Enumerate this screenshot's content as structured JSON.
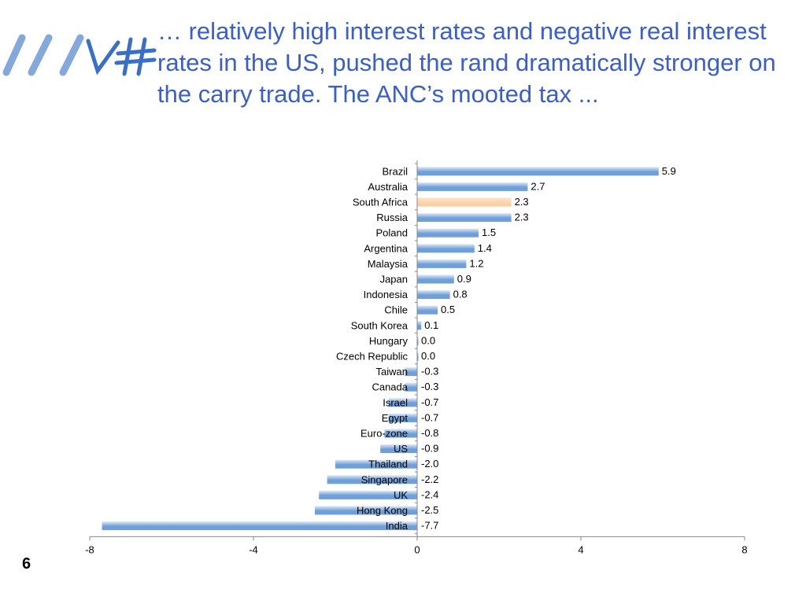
{
  "slide": {
    "title": "… relatively high interest rates and negative real interest rates in the US, pushed the rand dramatically stronger on the carry trade. The ANC’s mooted tax ...",
    "page_number": "6"
  },
  "colors": {
    "title": "#3a5fcd",
    "bar": "#6f9fd8",
    "highlight_bar": "#fbc999",
    "logo": "#6f9ad6"
  },
  "chart_data": {
    "type": "bar",
    "orientation": "horizontal",
    "categories": [
      "Brazil",
      "Australia",
      "South Africa",
      "Russia",
      "Poland",
      "Argentina",
      "Malaysia",
      "Japan",
      "Indonesia",
      "Chile",
      "South Korea",
      "Hungary",
      "Czech Republic",
      "Taiwan",
      "Canada",
      "Israel",
      "Egypt",
      "Euro-zone",
      "US",
      "Thailand",
      "Singapore",
      "UK",
      "Hong Kong",
      "India"
    ],
    "values": [
      5.9,
      2.7,
      2.3,
      2.3,
      1.5,
      1.4,
      1.2,
      0.9,
      0.8,
      0.5,
      0.1,
      0.0,
      0.0,
      -0.3,
      -0.3,
      -0.7,
      -0.7,
      -0.8,
      -0.9,
      -2.0,
      -2.2,
      -2.4,
      -2.5,
      -7.7
    ],
    "data_labels": [
      "5.9",
      "2.7",
      "2.3",
      "2.3",
      "1.5",
      "1.4",
      "1.2",
      "0.9",
      "0.8",
      "0.5",
      "0.1",
      "0.0",
      "0.0",
      "-0.3",
      "-0.3",
      "-0.7",
      "-0.7",
      "-0.8",
      "-0.9",
      "-2.0",
      "-2.2",
      "-2.4",
      "-2.5",
      "-7.7"
    ],
    "highlight_category": "South Africa",
    "xlim": [
      -8,
      8
    ],
    "x_ticks": [
      -8,
      -4,
      0,
      4,
      8
    ],
    "x_tick_labels": [
      "-8",
      "-4",
      "0",
      "4",
      "8"
    ],
    "grid": false,
    "legend": "none",
    "title": "",
    "xlabel": "",
    "ylabel": ""
  }
}
